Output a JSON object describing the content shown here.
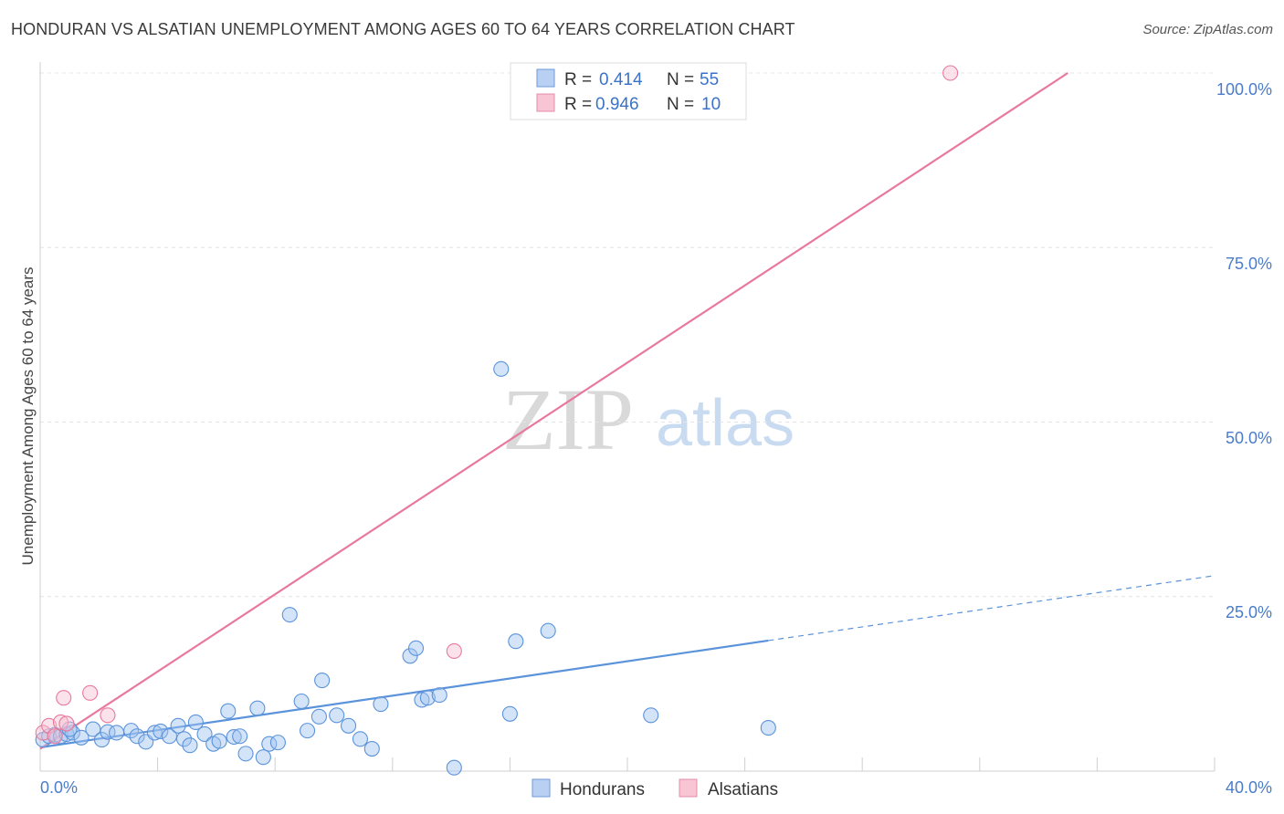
{
  "title": "HONDURAN VS ALSATIAN UNEMPLOYMENT AMONG AGES 60 TO 64 YEARS CORRELATION CHART",
  "source": "Source: ZipAtlas.com",
  "watermark": {
    "zip": "ZIP",
    "atlas": "atlas"
  },
  "colors": {
    "hondurans": "#5b93db",
    "alsatians": "#e8799d",
    "tick": "#4a7cc9"
  },
  "legend": {
    "rows": [
      {
        "r_label": "R =",
        "r_value": "0.414",
        "n_label": "N =",
        "n_value": "55"
      },
      {
        "r_label": "R =",
        "r_value": "0.946",
        "n_label": "N =",
        "n_value": "10"
      }
    ]
  },
  "bottom_legend": [
    "Hondurans",
    "Alsatians"
  ],
  "chart_data": {
    "type": "scatter",
    "title": "HONDURAN VS ALSATIAN UNEMPLOYMENT AMONG AGES 60 TO 64 YEARS CORRELATION CHART",
    "xlabel": "",
    "ylabel": "Unemployment Among Ages 60 to 64 years",
    "xlim": [
      0,
      40
    ],
    "ylim": [
      0,
      100
    ],
    "x_tick_labels": [
      "0.0%",
      "40.0%"
    ],
    "y_tick_labels": [
      "100.0%",
      "75.0%",
      "50.0%",
      "25.0%"
    ],
    "y_tick_values": [
      100,
      75,
      50,
      25
    ],
    "series": [
      {
        "name": "Hondurans",
        "points": [
          [
            0.1,
            4.5
          ],
          [
            0.3,
            5.0
          ],
          [
            0.5,
            5.2
          ],
          [
            0.7,
            5.0
          ],
          [
            0.9,
            5.3
          ],
          [
            1.1,
            5.5
          ],
          [
            1.4,
            4.8
          ],
          [
            1.8,
            6.0
          ],
          [
            2.1,
            4.5
          ],
          [
            2.3,
            5.6
          ],
          [
            2.6,
            5.5
          ],
          [
            3.1,
            5.8
          ],
          [
            3.3,
            5.0
          ],
          [
            3.6,
            4.2
          ],
          [
            3.9,
            5.5
          ],
          [
            4.1,
            5.7
          ],
          [
            4.4,
            5.0
          ],
          [
            4.7,
            6.5
          ],
          [
            4.9,
            4.6
          ],
          [
            5.1,
            3.7
          ],
          [
            5.3,
            7.0
          ],
          [
            5.6,
            5.3
          ],
          [
            5.9,
            3.9
          ],
          [
            6.1,
            4.3
          ],
          [
            6.4,
            8.6
          ],
          [
            6.6,
            4.9
          ],
          [
            6.8,
            5.0
          ],
          [
            7.0,
            2.5
          ],
          [
            7.4,
            9.0
          ],
          [
            7.6,
            2.0
          ],
          [
            7.8,
            3.9
          ],
          [
            8.1,
            4.1
          ],
          [
            8.5,
            22.4
          ],
          [
            8.9,
            10.0
          ],
          [
            9.1,
            5.8
          ],
          [
            9.5,
            7.8
          ],
          [
            9.6,
            13.0
          ],
          [
            10.1,
            8.0
          ],
          [
            10.5,
            6.5
          ],
          [
            10.9,
            4.6
          ],
          [
            11.3,
            3.2
          ],
          [
            11.6,
            9.6
          ],
          [
            12.6,
            16.5
          ],
          [
            12.8,
            17.6
          ],
          [
            13.0,
            10.2
          ],
          [
            13.2,
            10.5
          ],
          [
            13.6,
            10.9
          ],
          [
            14.1,
            0.5
          ],
          [
            15.7,
            57.6
          ],
          [
            16.0,
            8.2
          ],
          [
            16.2,
            18.6
          ],
          [
            17.3,
            20.1
          ],
          [
            20.8,
            8.0
          ],
          [
            24.8,
            6.2
          ],
          [
            1.0,
            6.0
          ]
        ],
        "trend": {
          "x": [
            0,
            24.8
          ],
          "y": [
            3.4,
            18.7
          ],
          "dashed_x": [
            24.8,
            40
          ],
          "dashed_y": [
            18.7,
            28.0
          ]
        }
      },
      {
        "name": "Alsatians",
        "points": [
          [
            0.1,
            5.5
          ],
          [
            0.3,
            6.5
          ],
          [
            0.5,
            5.0
          ],
          [
            0.7,
            7.0
          ],
          [
            0.8,
            10.5
          ],
          [
            1.7,
            11.2
          ],
          [
            2.3,
            8.0
          ],
          [
            0.9,
            6.8
          ],
          [
            14.1,
            17.2
          ],
          [
            31.0,
            100.0
          ]
        ],
        "trend": {
          "x": [
            0,
            35.0
          ],
          "y": [
            3.2,
            100.0
          ]
        }
      }
    ]
  }
}
